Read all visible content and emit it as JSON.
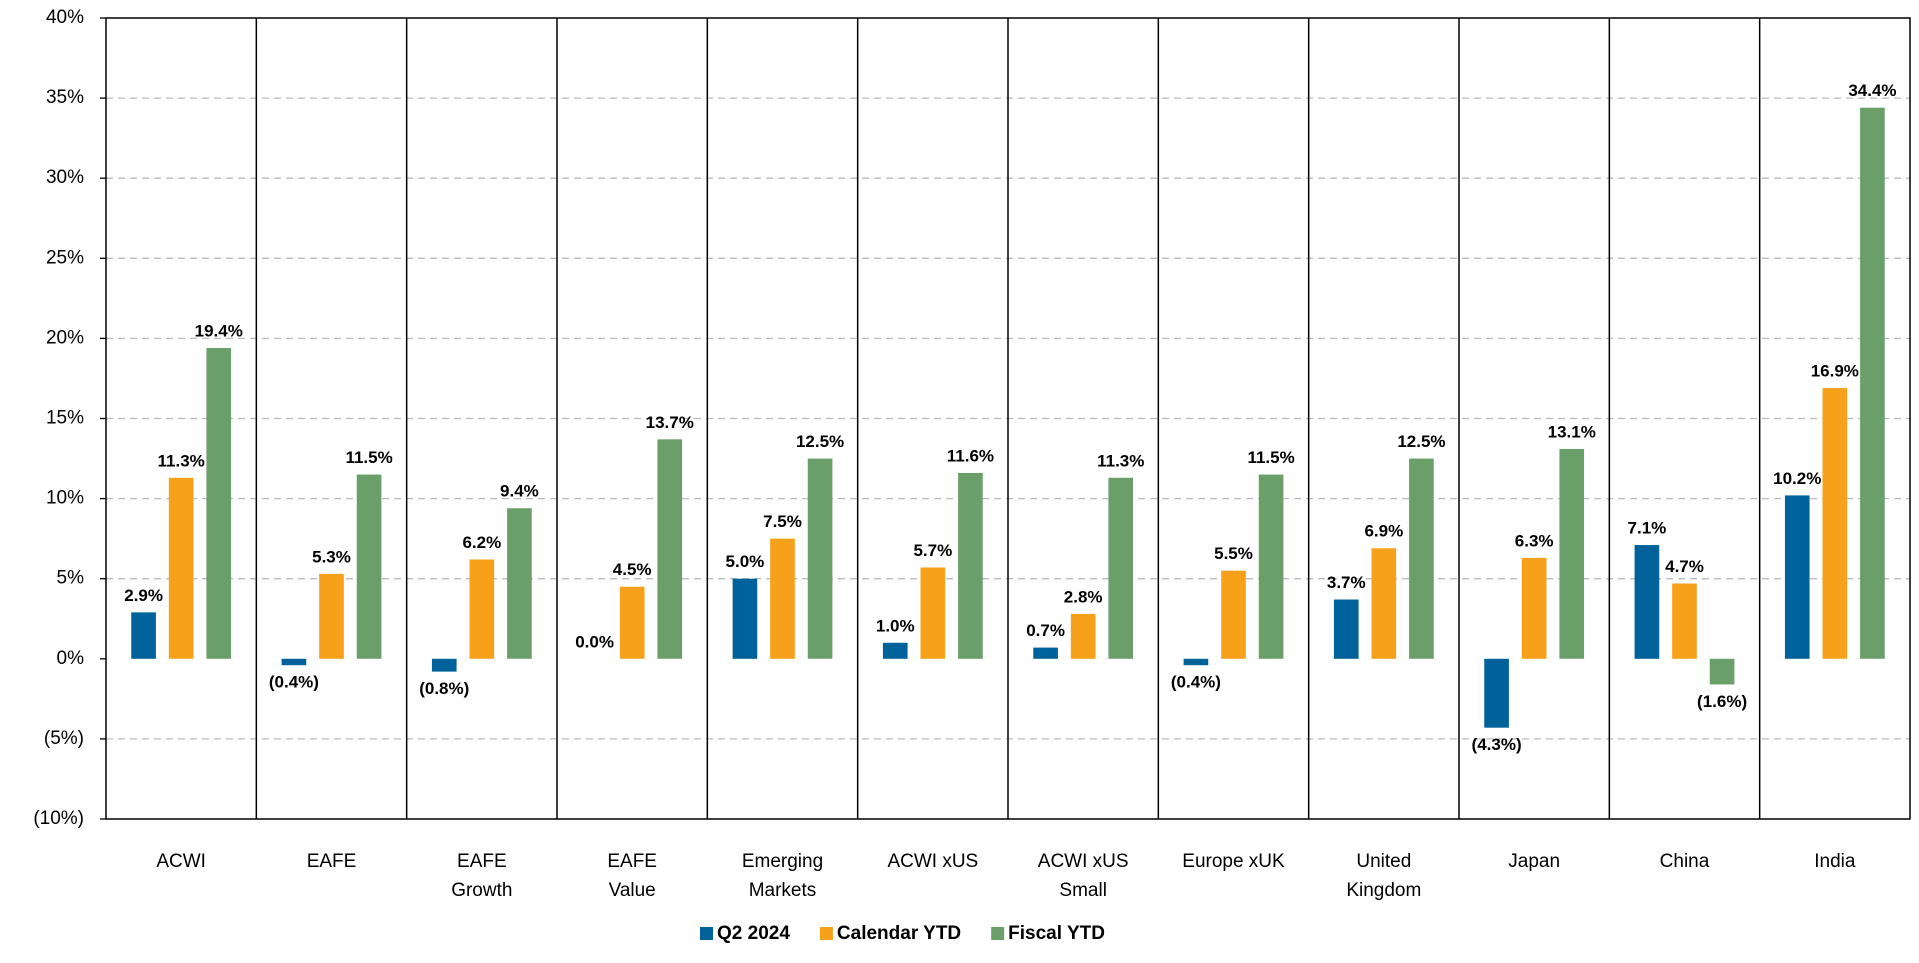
{
  "chart_data": {
    "type": "bar",
    "categories": [
      "ACWI",
      "EAFE",
      "EAFE\nGrowth",
      "EAFE\nValue",
      "Emerging\nMarkets",
      "ACWI xUS",
      "ACWI xUS\nSmall",
      "Europe xUK",
      "United\nKingdom",
      "Japan",
      "China",
      "India"
    ],
    "series": [
      {
        "name": "Q2 2024",
        "color": "#00629b",
        "values": [
          2.9,
          -0.4,
          -0.8,
          0.0,
          5.0,
          1.0,
          0.7,
          -0.4,
          3.7,
          -4.3,
          7.1,
          10.2
        ],
        "value_labels": [
          "2.9%",
          "(0.4%)",
          "(0.8%)",
          "0.0%",
          "5.0%",
          "1.0%",
          "0.7%",
          "(0.4%)",
          "3.7%",
          "(4.3%)",
          "7.1%",
          "10.2%"
        ]
      },
      {
        "name": "Calendar YTD",
        "color": "#f7a11a",
        "values": [
          11.3,
          5.3,
          6.2,
          4.5,
          7.5,
          5.7,
          2.8,
          5.5,
          6.9,
          6.3,
          4.7,
          16.9
        ],
        "value_labels": [
          "11.3%",
          "5.3%",
          "6.2%",
          "4.5%",
          "7.5%",
          "5.7%",
          "2.8%",
          "5.5%",
          "6.9%",
          "6.3%",
          "4.7%",
          "16.9%"
        ]
      },
      {
        "name": "Fiscal YTD",
        "color": "#6a9f6a",
        "values": [
          19.4,
          11.5,
          9.4,
          13.7,
          12.5,
          11.6,
          11.3,
          11.5,
          12.5,
          13.1,
          -1.6,
          34.4
        ],
        "value_labels": [
          "19.4%",
          "11.5%",
          "9.4%",
          "13.7%",
          "12.5%",
          "11.6%",
          "11.3%",
          "11.5%",
          "12.5%",
          "13.1%",
          "(1.6%)",
          "34.4%"
        ]
      }
    ],
    "ylim": [
      -10,
      40
    ],
    "yticks": [
      {
        "value": -10,
        "label": "(10%)"
      },
      {
        "value": -5,
        "label": "(5%)"
      },
      {
        "value": 0,
        "label": "0%"
      },
      {
        "value": 5,
        "label": "5%"
      },
      {
        "value": 10,
        "label": "10%"
      },
      {
        "value": 15,
        "label": "15%"
      },
      {
        "value": 20,
        "label": "20%"
      },
      {
        "value": 25,
        "label": "25%"
      },
      {
        "value": 30,
        "label": "30%"
      },
      {
        "value": 35,
        "label": "35%"
      },
      {
        "value": 40,
        "label": "40%"
      }
    ],
    "grid": true,
    "negative_color": "#ff0000"
  }
}
